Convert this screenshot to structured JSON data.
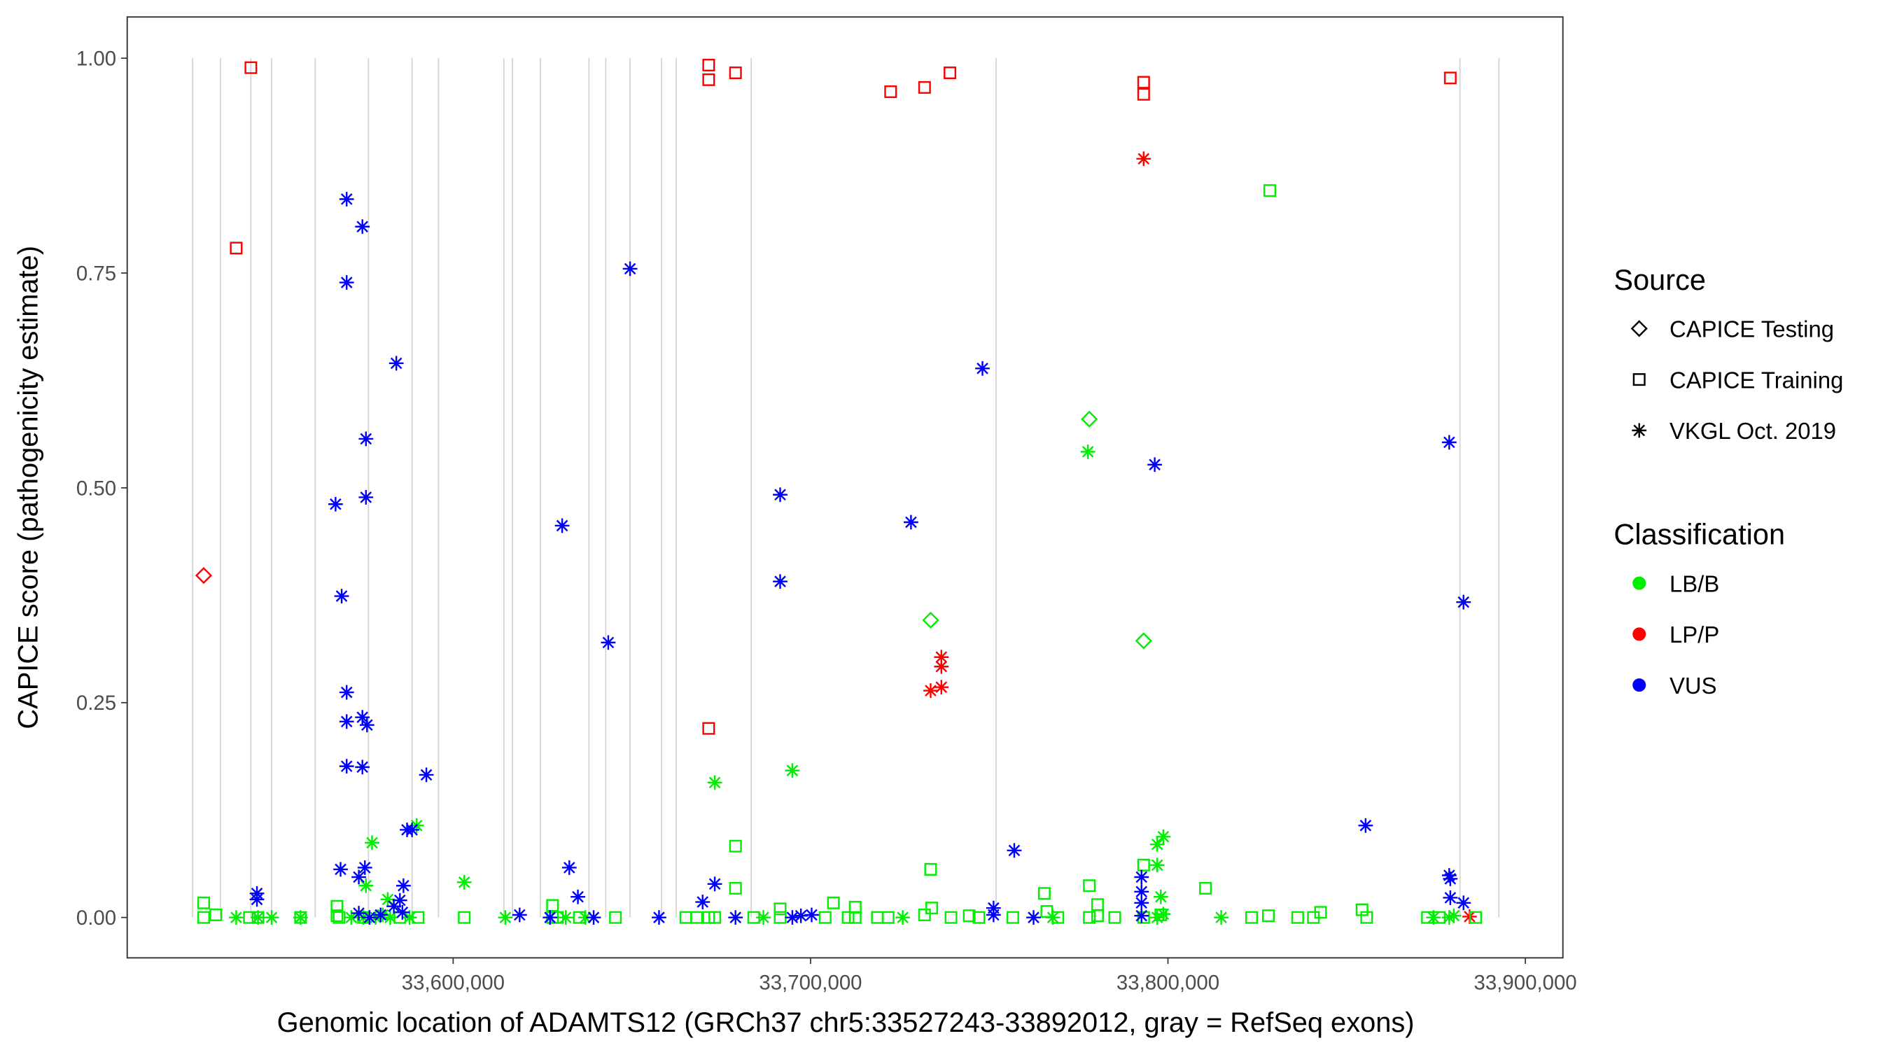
{
  "chart_data": {
    "type": "scatter",
    "xlabel": "Genomic location of ADAMTS12 (GRCh37 chr5:33527243-33892012, gray = RefSeq exons)",
    "ylabel": "CAPICE score (pathogenicity estimate)",
    "xlim": [
      33508800,
      33910500
    ],
    "ylim": [
      -0.047,
      1.048
    ],
    "x_ticks": [
      33600000,
      33700000,
      33800000,
      33900000
    ],
    "x_tick_labels": [
      "33,600,000",
      "33,700,000",
      "33,800,000",
      "33,900,000"
    ],
    "y_ticks": [
      0,
      0.25,
      0.5,
      0.75,
      1
    ],
    "y_tick_labels": [
      "0.00",
      "0.25",
      "0.50",
      "0.75",
      "1.00"
    ],
    "grid": false,
    "exon_positions": [
      33527100,
      33534900,
      33543400,
      33549200,
      33561400,
      33576300,
      33588500,
      33595900,
      33614200,
      33616600,
      33624400,
      33638000,
      33642700,
      33649500,
      33658300,
      33662400,
      33683400,
      33751900,
      33881700,
      33892600
    ],
    "exon_color": "#d3d3d3",
    "legend_placement": "right",
    "legend": {
      "source_title": "Source",
      "sources": [
        {
          "label": "CAPICE Testing",
          "shape": "diamond"
        },
        {
          "label": "CAPICE Training",
          "shape": "square"
        },
        {
          "label": "VKGL Oct. 2019",
          "shape": "asterisk"
        }
      ],
      "class_title": "Classification",
      "classes": [
        {
          "label": "LB/B",
          "color": "#00ee00"
        },
        {
          "label": "LP/P",
          "color": "#ff0000"
        },
        {
          "label": "VUS",
          "color": "#0000ff"
        }
      ]
    },
    "point_fields": [
      "position",
      "score",
      "source",
      "classification"
    ],
    "points": [
      [
        33543400,
        0.989,
        "CAPICE Training",
        "LP/P"
      ],
      [
        33539300,
        0.779,
        "CAPICE Training",
        "LP/P"
      ],
      [
        33671500,
        0.992,
        "CAPICE Training",
        "LP/P"
      ],
      [
        33671500,
        0.975,
        "CAPICE Training",
        "LP/P"
      ],
      [
        33679000,
        0.983,
        "CAPICE Training",
        "LP/P"
      ],
      [
        33722400,
        0.961,
        "CAPICE Training",
        "LP/P"
      ],
      [
        33731900,
        0.966,
        "CAPICE Training",
        "LP/P"
      ],
      [
        33739000,
        0.983,
        "CAPICE Training",
        "LP/P"
      ],
      [
        33793200,
        0.972,
        "CAPICE Training",
        "LP/P"
      ],
      [
        33793200,
        0.958,
        "CAPICE Training",
        "LP/P"
      ],
      [
        33879000,
        0.977,
        "CAPICE Training",
        "LP/P"
      ],
      [
        33671500,
        0.22,
        "CAPICE Training",
        "LP/P"
      ],
      [
        33530200,
        0.398,
        "CAPICE Testing",
        "LP/P"
      ],
      [
        33793200,
        0.883,
        "VKGL Oct. 2019",
        "LP/P"
      ],
      [
        33736600,
        0.303,
        "VKGL Oct. 2019",
        "LP/P"
      ],
      [
        33736600,
        0.292,
        "VKGL Oct. 2019",
        "LP/P"
      ],
      [
        33733600,
        0.264,
        "VKGL Oct. 2019",
        "LP/P"
      ],
      [
        33736600,
        0.268,
        "VKGL Oct. 2019",
        "LP/P"
      ],
      [
        33884400,
        0.001,
        "VKGL Oct. 2019",
        "LP/P"
      ],
      [
        33778000,
        0.58,
        "CAPICE Testing",
        "LB/B"
      ],
      [
        33733600,
        0.346,
        "CAPICE Testing",
        "LB/B"
      ],
      [
        33793200,
        0.322,
        "CAPICE Testing",
        "LB/B"
      ],
      [
        33828500,
        0.846,
        "CAPICE Training",
        "LB/B"
      ],
      [
        33679000,
        0.083,
        "CAPICE Training",
        "LB/B"
      ],
      [
        33733600,
        0.056,
        "CAPICE Training",
        "LB/B"
      ],
      [
        33793200,
        0.061,
        "CAPICE Training",
        "LB/B"
      ],
      [
        33778000,
        0.037,
        "CAPICE Training",
        "LB/B"
      ],
      [
        33810500,
        0.034,
        "CAPICE Training",
        "LB/B"
      ],
      [
        33679000,
        0.034,
        "CAPICE Training",
        "LB/B"
      ],
      [
        33765400,
        0.028,
        "CAPICE Training",
        "LB/B"
      ],
      [
        33530200,
        0.017,
        "CAPICE Training",
        "LB/B"
      ],
      [
        33706400,
        0.017,
        "CAPICE Training",
        "LB/B"
      ],
      [
        33567500,
        0.013,
        "CAPICE Training",
        "LB/B"
      ],
      [
        33627800,
        0.014,
        "CAPICE Training",
        "LB/B"
      ],
      [
        33691500,
        0.01,
        "CAPICE Training",
        "LB/B"
      ],
      [
        33712500,
        0.012,
        "CAPICE Training",
        "LB/B"
      ],
      [
        33733900,
        0.011,
        "CAPICE Training",
        "LB/B"
      ],
      [
        33780300,
        0.015,
        "CAPICE Training",
        "LB/B"
      ],
      [
        33854300,
        0.009,
        "CAPICE Training",
        "LB/B"
      ],
      [
        33530200,
        0.0,
        "CAPICE Training",
        "LB/B"
      ],
      [
        33533600,
        0.003,
        "CAPICE Training",
        "LB/B"
      ],
      [
        33543000,
        0.0,
        "CAPICE Training",
        "LB/B"
      ],
      [
        33545400,
        0.0,
        "CAPICE Training",
        "LB/B"
      ],
      [
        33557300,
        0.0,
        "CAPICE Training",
        "LB/B"
      ],
      [
        33567500,
        0.002,
        "CAPICE Training",
        "LB/B"
      ],
      [
        33568100,
        0.0,
        "CAPICE Training",
        "LB/B"
      ],
      [
        33574900,
        0.0,
        "CAPICE Training",
        "LB/B"
      ],
      [
        33585100,
        0.0,
        "CAPICE Training",
        "LB/B"
      ],
      [
        33590200,
        0.0,
        "CAPICE Training",
        "LB/B"
      ],
      [
        33603100,
        0.0,
        "CAPICE Training",
        "LB/B"
      ],
      [
        33627800,
        0.0,
        "CAPICE Training",
        "LB/B"
      ],
      [
        33629200,
        0.0,
        "CAPICE Training",
        "LB/B"
      ],
      [
        33635300,
        0.0,
        "CAPICE Training",
        "LB/B"
      ],
      [
        33645400,
        0.0,
        "CAPICE Training",
        "LB/B"
      ],
      [
        33665100,
        0.0,
        "CAPICE Training",
        "LB/B"
      ],
      [
        33668100,
        0.0,
        "CAPICE Training",
        "LB/B"
      ],
      [
        33671500,
        0.0,
        "CAPICE Training",
        "LB/B"
      ],
      [
        33673200,
        0.0,
        "CAPICE Training",
        "LB/B"
      ],
      [
        33684100,
        0.0,
        "CAPICE Training",
        "LB/B"
      ],
      [
        33691500,
        0.0,
        "CAPICE Training",
        "LB/B"
      ],
      [
        33704100,
        0.0,
        "CAPICE Training",
        "LB/B"
      ],
      [
        33710500,
        0.0,
        "CAPICE Training",
        "LB/B"
      ],
      [
        33712500,
        0.0,
        "CAPICE Training",
        "LB/B"
      ],
      [
        33718700,
        0.0,
        "CAPICE Training",
        "LB/B"
      ],
      [
        33721700,
        0.0,
        "CAPICE Training",
        "LB/B"
      ],
      [
        33731900,
        0.003,
        "CAPICE Training",
        "LB/B"
      ],
      [
        33739300,
        0.0,
        "CAPICE Training",
        "LB/B"
      ],
      [
        33744400,
        0.002,
        "CAPICE Training",
        "LB/B"
      ],
      [
        33747100,
        0.0,
        "CAPICE Training",
        "LB/B"
      ],
      [
        33756600,
        0.0,
        "CAPICE Training",
        "LB/B"
      ],
      [
        33766100,
        0.007,
        "CAPICE Training",
        "LB/B"
      ],
      [
        33769200,
        0.0,
        "CAPICE Training",
        "LB/B"
      ],
      [
        33778000,
        0.0,
        "CAPICE Training",
        "LB/B"
      ],
      [
        33780300,
        0.002,
        "CAPICE Training",
        "LB/B"
      ],
      [
        33785100,
        0.0,
        "CAPICE Training",
        "LB/B"
      ],
      [
        33793200,
        0.0,
        "CAPICE Training",
        "LB/B"
      ],
      [
        33798000,
        0.003,
        "CAPICE Training",
        "LB/B"
      ],
      [
        33823400,
        0.0,
        "CAPICE Training",
        "LB/B"
      ],
      [
        33828100,
        0.002,
        "CAPICE Training",
        "LB/B"
      ],
      [
        33836300,
        0.0,
        "CAPICE Training",
        "LB/B"
      ],
      [
        33840700,
        0.0,
        "CAPICE Training",
        "LB/B"
      ],
      [
        33842700,
        0.006,
        "CAPICE Training",
        "LB/B"
      ],
      [
        33855600,
        0.0,
        "CAPICE Training",
        "LB/B"
      ],
      [
        33872600,
        0.0,
        "CAPICE Training",
        "LB/B"
      ],
      [
        33875900,
        0.0,
        "CAPICE Training",
        "LB/B"
      ],
      [
        33886100,
        0.0,
        "CAPICE Training",
        "LB/B"
      ],
      [
        33777600,
        0.542,
        "VKGL Oct. 2019",
        "LB/B"
      ],
      [
        33673200,
        0.157,
        "VKGL Oct. 2019",
        "LB/B"
      ],
      [
        33694900,
        0.171,
        "VKGL Oct. 2019",
        "LB/B"
      ],
      [
        33577300,
        0.087,
        "VKGL Oct. 2019",
        "LB/B"
      ],
      [
        33589800,
        0.107,
        "VKGL Oct. 2019",
        "LB/B"
      ],
      [
        33603100,
        0.041,
        "VKGL Oct. 2019",
        "LB/B"
      ],
      [
        33575600,
        0.037,
        "VKGL Oct. 2019",
        "LB/B"
      ],
      [
        33798700,
        0.094,
        "VKGL Oct. 2019",
        "LB/B"
      ],
      [
        33797000,
        0.085,
        "VKGL Oct. 2019",
        "LB/B"
      ],
      [
        33797000,
        0.061,
        "VKGL Oct. 2019",
        "LB/B"
      ],
      [
        33798000,
        0.024,
        "VKGL Oct. 2019",
        "LB/B"
      ],
      [
        33581700,
        0.021,
        "VKGL Oct. 2019",
        "LB/B"
      ],
      [
        33539300,
        0.0,
        "VKGL Oct. 2019",
        "LB/B"
      ],
      [
        33545400,
        0.0,
        "VKGL Oct. 2019",
        "LB/B"
      ],
      [
        33549200,
        0.0,
        "VKGL Oct. 2019",
        "LB/B"
      ],
      [
        33557300,
        0.0,
        "VKGL Oct. 2019",
        "LB/B"
      ],
      [
        33571500,
        0.0,
        "VKGL Oct. 2019",
        "LB/B"
      ],
      [
        33574900,
        0.0,
        "VKGL Oct. 2019",
        "LB/B"
      ],
      [
        33578300,
        0.0,
        "VKGL Oct. 2019",
        "LB/B"
      ],
      [
        33580300,
        0.003,
        "VKGL Oct. 2019",
        "LB/B"
      ],
      [
        33582400,
        0.0,
        "VKGL Oct. 2019",
        "LB/B"
      ],
      [
        33587800,
        0.0,
        "VKGL Oct. 2019",
        "LB/B"
      ],
      [
        33614600,
        0.0,
        "VKGL Oct. 2019",
        "LB/B"
      ],
      [
        33631500,
        0.0,
        "VKGL Oct. 2019",
        "LB/B"
      ],
      [
        33637000,
        0.0,
        "VKGL Oct. 2019",
        "LB/B"
      ],
      [
        33686800,
        0.0,
        "VKGL Oct. 2019",
        "LB/B"
      ],
      [
        33725800,
        0.0,
        "VKGL Oct. 2019",
        "LB/B"
      ],
      [
        33767800,
        0.0,
        "VKGL Oct. 2019",
        "LB/B"
      ],
      [
        33797000,
        0.0,
        "VKGL Oct. 2019",
        "LB/B"
      ],
      [
        33798700,
        0.004,
        "VKGL Oct. 2019",
        "LB/B"
      ],
      [
        33814900,
        0.0,
        "VKGL Oct. 2019",
        "LB/B"
      ],
      [
        33874300,
        0.0,
        "VKGL Oct. 2019",
        "LB/B"
      ],
      [
        33878700,
        0.0,
        "VKGL Oct. 2019",
        "LB/B"
      ],
      [
        33880000,
        0.002,
        "VKGL Oct. 2019",
        "LB/B"
      ],
      [
        33570200,
        0.836,
        "VKGL Oct. 2019",
        "VUS"
      ],
      [
        33574600,
        0.804,
        "VKGL Oct. 2019",
        "VUS"
      ],
      [
        33570200,
        0.739,
        "VKGL Oct. 2019",
        "VUS"
      ],
      [
        33584100,
        0.645,
        "VKGL Oct. 2019",
        "VUS"
      ],
      [
        33649500,
        0.755,
        "VKGL Oct. 2019",
        "VUS"
      ],
      [
        33575600,
        0.557,
        "VKGL Oct. 2019",
        "VUS"
      ],
      [
        33567100,
        0.481,
        "VKGL Oct. 2019",
        "VUS"
      ],
      [
        33575600,
        0.489,
        "VKGL Oct. 2019",
        "VUS"
      ],
      [
        33691500,
        0.492,
        "VKGL Oct. 2019",
        "VUS"
      ],
      [
        33630500,
        0.456,
        "VKGL Oct. 2019",
        "VUS"
      ],
      [
        33728100,
        0.46,
        "VKGL Oct. 2019",
        "VUS"
      ],
      [
        33691500,
        0.391,
        "VKGL Oct. 2019",
        "VUS"
      ],
      [
        33568800,
        0.374,
        "VKGL Oct. 2019",
        "VUS"
      ],
      [
        33748100,
        0.639,
        "VKGL Oct. 2019",
        "VUS"
      ],
      [
        33796300,
        0.527,
        "VKGL Oct. 2019",
        "VUS"
      ],
      [
        33878700,
        0.553,
        "VKGL Oct. 2019",
        "VUS"
      ],
      [
        33882700,
        0.367,
        "VKGL Oct. 2019",
        "VUS"
      ],
      [
        33643400,
        0.32,
        "VKGL Oct. 2019",
        "VUS"
      ],
      [
        33570200,
        0.262,
        "VKGL Oct. 2019",
        "VUS"
      ],
      [
        33570200,
        0.228,
        "VKGL Oct. 2019",
        "VUS"
      ],
      [
        33574600,
        0.233,
        "VKGL Oct. 2019",
        "VUS"
      ],
      [
        33575900,
        0.224,
        "VKGL Oct. 2019",
        "VUS"
      ],
      [
        33570200,
        0.176,
        "VKGL Oct. 2019",
        "VUS"
      ],
      [
        33574600,
        0.175,
        "VKGL Oct. 2019",
        "VUS"
      ],
      [
        33592500,
        0.166,
        "VKGL Oct. 2019",
        "VUS"
      ],
      [
        33587100,
        0.102,
        "VKGL Oct. 2019",
        "VUS"
      ],
      [
        33588500,
        0.102,
        "VKGL Oct. 2019",
        "VUS"
      ],
      [
        33855300,
        0.107,
        "VKGL Oct. 2019",
        "VUS"
      ],
      [
        33757000,
        0.078,
        "VKGL Oct. 2019",
        "VUS"
      ],
      [
        33568500,
        0.056,
        "VKGL Oct. 2019",
        "VUS"
      ],
      [
        33575300,
        0.058,
        "VKGL Oct. 2019",
        "VUS"
      ],
      [
        33632500,
        0.058,
        "VKGL Oct. 2019",
        "VUS"
      ],
      [
        33573600,
        0.047,
        "VKGL Oct. 2019",
        "VUS"
      ],
      [
        33878700,
        0.049,
        "VKGL Oct. 2019",
        "VUS"
      ],
      [
        33879000,
        0.045,
        "VKGL Oct. 2019",
        "VUS"
      ],
      [
        33792600,
        0.047,
        "VKGL Oct. 2019",
        "VUS"
      ],
      [
        33792600,
        0.03,
        "VKGL Oct. 2019",
        "VUS"
      ],
      [
        33673200,
        0.039,
        "VKGL Oct. 2019",
        "VUS"
      ],
      [
        33586100,
        0.037,
        "VKGL Oct. 2019",
        "VUS"
      ],
      [
        33545100,
        0.028,
        "VKGL Oct. 2019",
        "VUS"
      ],
      [
        33545100,
        0.021,
        "VKGL Oct. 2019",
        "VUS"
      ],
      [
        33634900,
        0.024,
        "VKGL Oct. 2019",
        "VUS"
      ],
      [
        33669800,
        0.018,
        "VKGL Oct. 2019",
        "VUS"
      ],
      [
        33792600,
        0.017,
        "VKGL Oct. 2019",
        "VUS"
      ],
      [
        33879000,
        0.023,
        "VKGL Oct. 2019",
        "VUS"
      ],
      [
        33882700,
        0.017,
        "VKGL Oct. 2019",
        "VUS"
      ],
      [
        33751200,
        0.011,
        "VKGL Oct. 2019",
        "VUS"
      ],
      [
        33585100,
        0.02,
        "VKGL Oct. 2019",
        "VUS"
      ],
      [
        33583400,
        0.013,
        "VKGL Oct. 2019",
        "VUS"
      ],
      [
        33573600,
        0.005,
        "VKGL Oct. 2019",
        "VUS"
      ],
      [
        33576600,
        0.0,
        "VKGL Oct. 2019",
        "VUS"
      ],
      [
        33579700,
        0.003,
        "VKGL Oct. 2019",
        "VUS"
      ],
      [
        33585800,
        0.006,
        "VKGL Oct. 2019",
        "VUS"
      ],
      [
        33618600,
        0.003,
        "VKGL Oct. 2019",
        "VUS"
      ],
      [
        33627100,
        0.0,
        "VKGL Oct. 2019",
        "VUS"
      ],
      [
        33639300,
        0.0,
        "VKGL Oct. 2019",
        "VUS"
      ],
      [
        33657600,
        0.0,
        "VKGL Oct. 2019",
        "VUS"
      ],
      [
        33679000,
        0.0,
        "VKGL Oct. 2019",
        "VUS"
      ],
      [
        33694900,
        0.0,
        "VKGL Oct. 2019",
        "VUS"
      ],
      [
        33697300,
        0.002,
        "VKGL Oct. 2019",
        "VUS"
      ],
      [
        33700300,
        0.003,
        "VKGL Oct. 2019",
        "VUS"
      ],
      [
        33751200,
        0.003,
        "VKGL Oct. 2019",
        "VUS"
      ],
      [
        33762400,
        0.0,
        "VKGL Oct. 2019",
        "VUS"
      ],
      [
        33792600,
        0.002,
        "VKGL Oct. 2019",
        "VUS"
      ]
    ]
  }
}
